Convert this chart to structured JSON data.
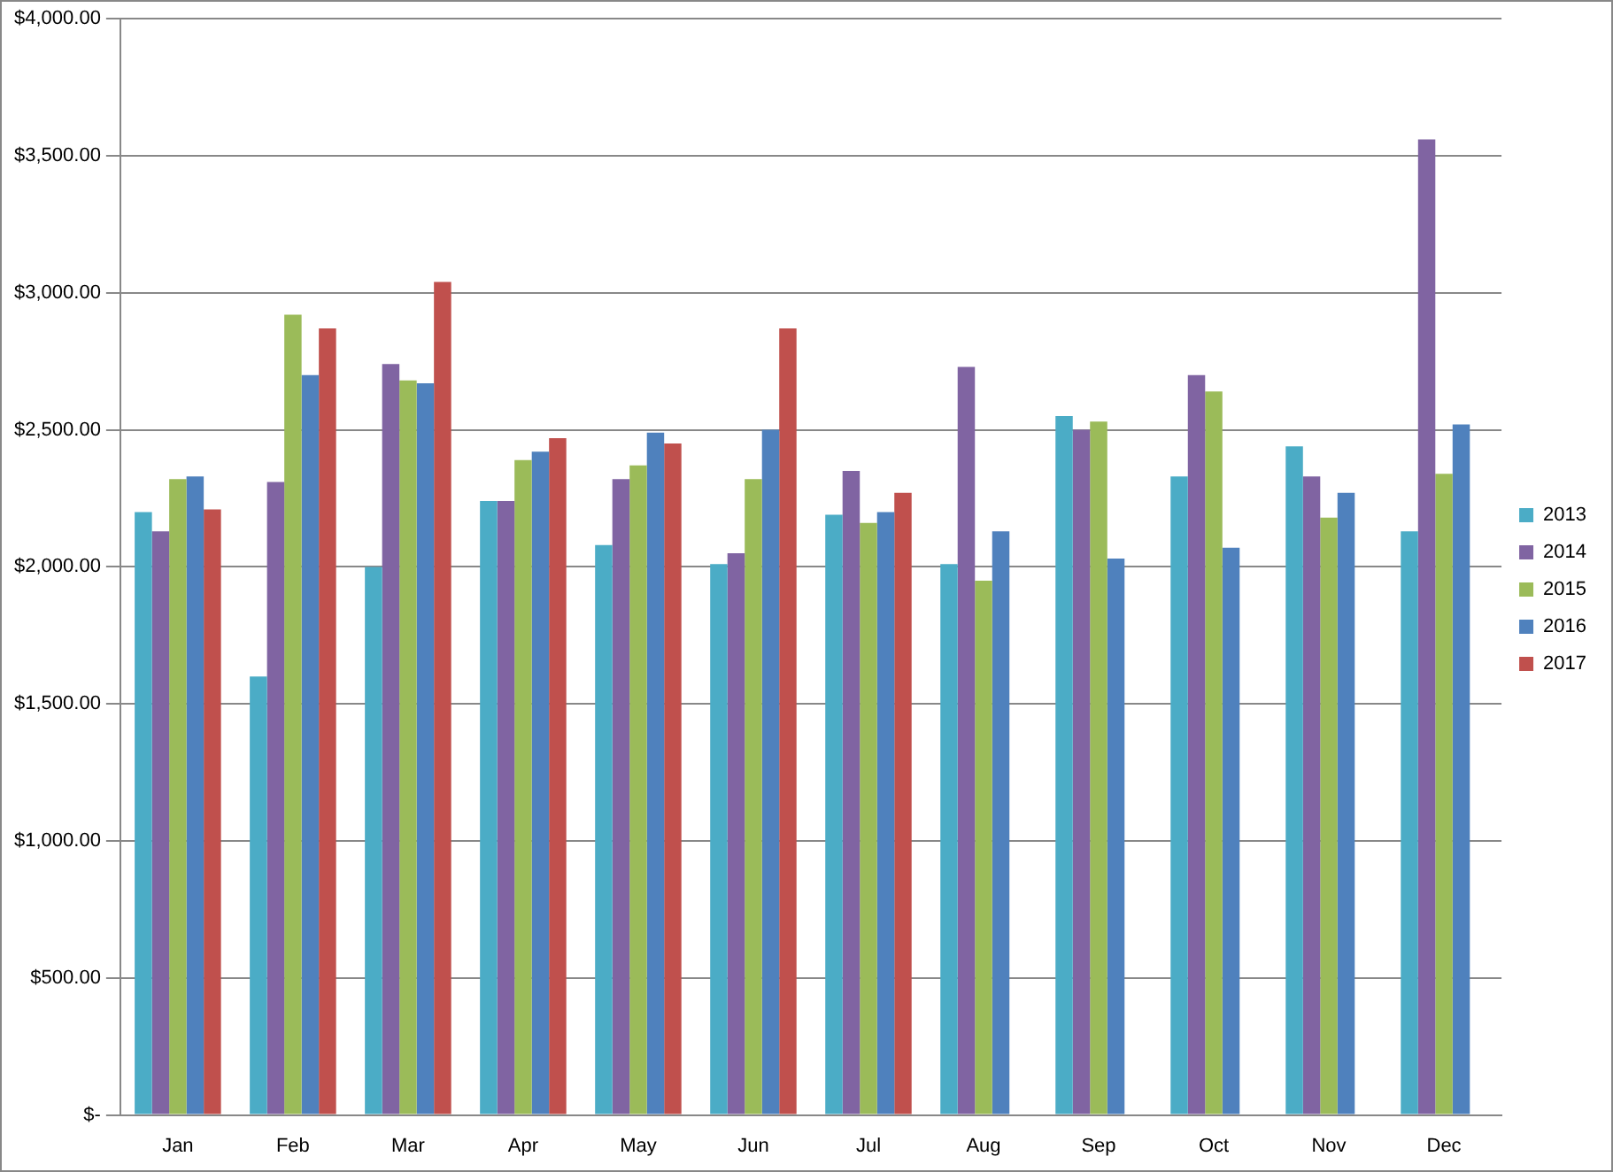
{
  "chart_data": {
    "type": "bar",
    "categories": [
      "Jan",
      "Feb",
      "Mar",
      "Apr",
      "May",
      "Jun",
      "Jul",
      "Aug",
      "Sep",
      "Oct",
      "Nov",
      "Dec"
    ],
    "series": [
      {
        "name": "2013",
        "color": "#4bacc6",
        "values": [
          2200,
          1600,
          2000,
          2240,
          2080,
          2010,
          2190,
          2010,
          2550,
          2330,
          2440,
          2130
        ]
      },
      {
        "name": "2014",
        "color": "#8064a2",
        "values": [
          2130,
          2310,
          2740,
          2240,
          2320,
          2050,
          2350,
          2730,
          2500,
          2700,
          2330,
          3560
        ]
      },
      {
        "name": "2015",
        "color": "#9bbb59",
        "values": [
          2320,
          2920,
          2680,
          2390,
          2370,
          2320,
          2160,
          1950,
          2530,
          2640,
          2180,
          2340
        ]
      },
      {
        "name": "2016",
        "color": "#4f81bd",
        "values": [
          2330,
          2700,
          2670,
          2420,
          2490,
          2500,
          2200,
          2130,
          2030,
          2070,
          2270,
          2520
        ]
      },
      {
        "name": "2017",
        "color": "#c0504d",
        "values": [
          2210,
          2870,
          3040,
          2470,
          2450,
          2870,
          2270,
          null,
          null,
          null,
          null,
          null
        ]
      }
    ],
    "ylim": [
      0,
      4000
    ],
    "yticks": [
      {
        "value": 0,
        "label": "$-"
      },
      {
        "value": 500,
        "label": "$500.00"
      },
      {
        "value": 1000,
        "label": "$1,000.00"
      },
      {
        "value": 1500,
        "label": "$1,500.00"
      },
      {
        "value": 2000,
        "label": "$2,000.00"
      },
      {
        "value": 2500,
        "label": "$2,500.00"
      },
      {
        "value": 3000,
        "label": "$3,000.00"
      },
      {
        "value": 3500,
        "label": "$3,500.00"
      },
      {
        "value": 4000,
        "label": "$4,000.00"
      }
    ],
    "grid": "y",
    "legend": "right"
  }
}
